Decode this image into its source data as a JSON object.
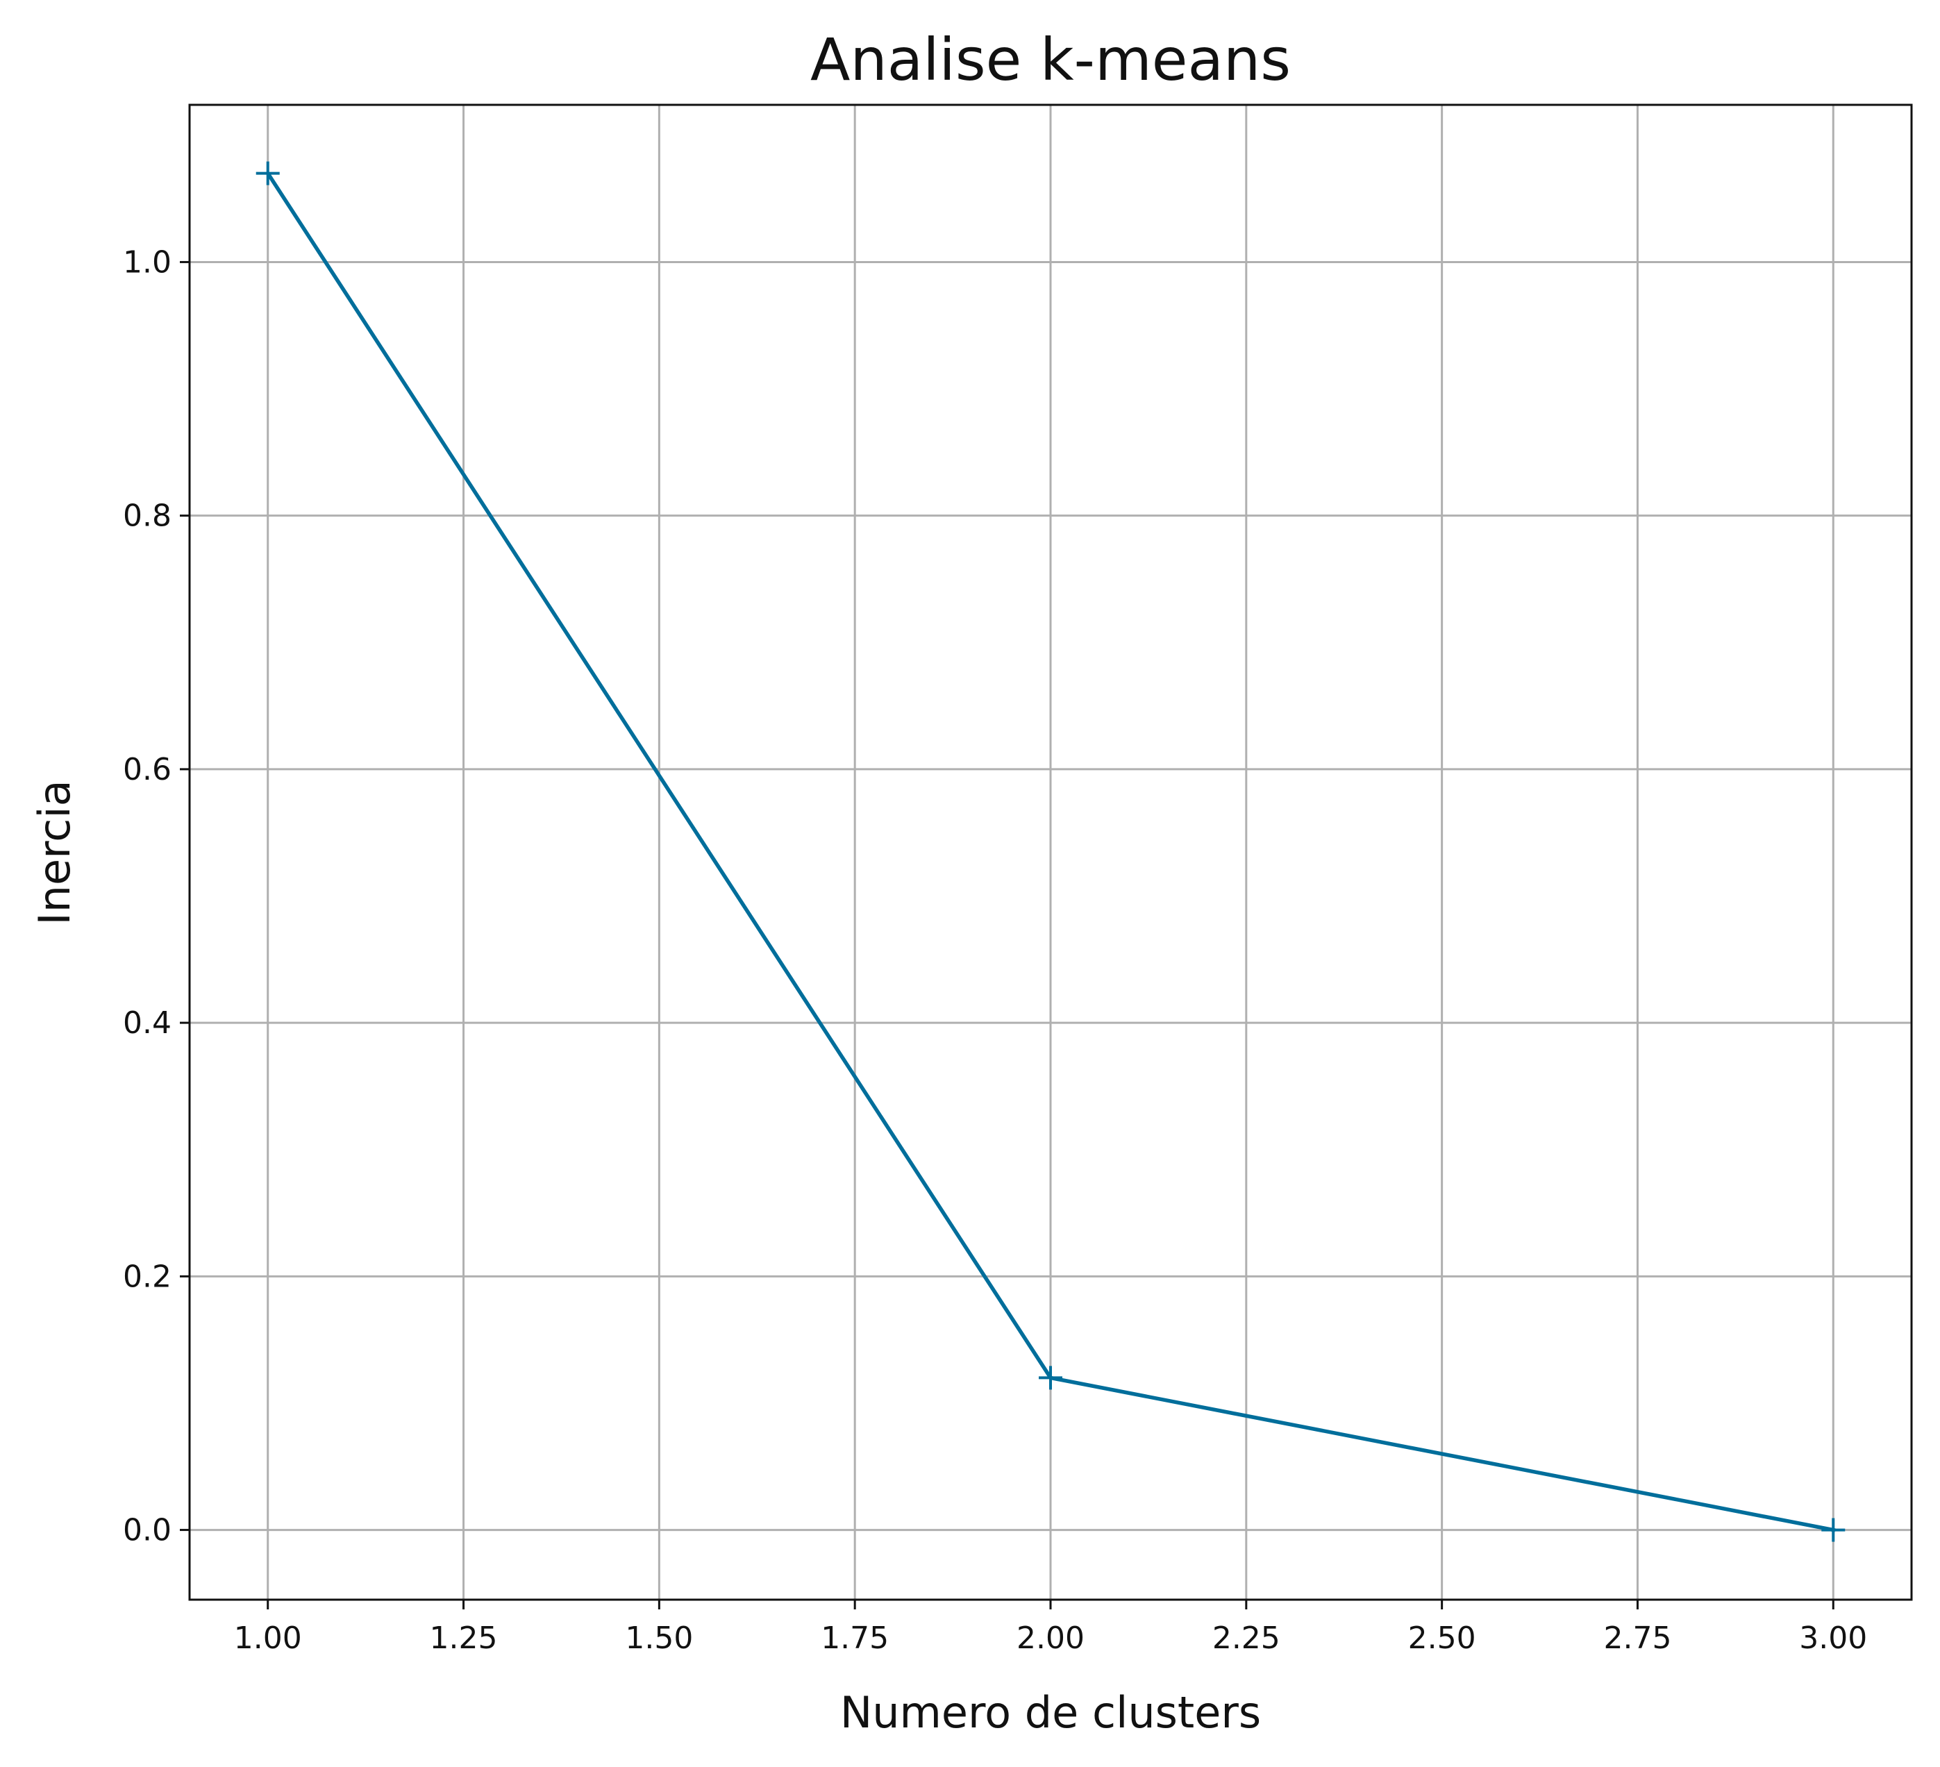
{
  "chart_data": {
    "type": "line",
    "title": "Analise k-means",
    "xlabel": "Numero de clusters",
    "ylabel": "Inercia",
    "x": [
      1,
      2,
      3
    ],
    "series": [
      {
        "values": [
          1.07,
          0.12,
          0.0
        ],
        "color": "#006e9b",
        "marker": "plus"
      }
    ],
    "xlim": [
      0.9,
      3.1
    ],
    "ylim": [
      -0.055,
      1.124
    ],
    "xticks": [
      1.0,
      1.25,
      1.5,
      1.75,
      2.0,
      2.25,
      2.5,
      2.75,
      3.0
    ],
    "xtick_labels": [
      "1.00",
      "1.25",
      "1.50",
      "1.75",
      "2.00",
      "2.25",
      "2.50",
      "2.75",
      "3.00"
    ],
    "yticks": [
      0.0,
      0.2,
      0.4,
      0.6,
      0.8,
      1.0
    ],
    "ytick_labels": [
      "0.0",
      "0.2",
      "0.4",
      "0.6",
      "0.8",
      "1.0"
    ],
    "grid": true,
    "legend": "none"
  }
}
